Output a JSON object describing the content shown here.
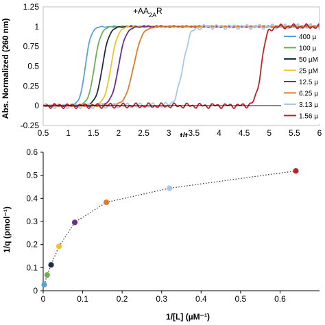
{
  "chart_data": [
    {
      "type": "line",
      "annotation": {
        "prefix": "+AA",
        "sub": "2A",
        "suffix": "R"
      },
      "xlabel": {
        "main": "t/t",
        "sub": "0"
      },
      "ylabel": "Abs. Normalized (260 nm)",
      "xlim": [
        0.5,
        6
      ],
      "ylim": [
        -0.25,
        1.25
      ],
      "xticks": [
        "0.5",
        "1",
        "1.5",
        "2",
        "2.5",
        "3",
        "3.5",
        "4",
        "4.5",
        "5",
        "5.5",
        "6"
      ],
      "yticks": [
        "-0.25",
        "0",
        "0.25",
        "0.5",
        "0.75",
        "1",
        "1.25"
      ],
      "legend_position": "right",
      "series": [
        {
          "name": "400 µ",
          "color": "#5aa0d8",
          "t_mid": 1.34,
          "k": 18
        },
        {
          "name": "100 µ",
          "color": "#6ab04c",
          "t_mid": 1.52,
          "k": 16
        },
        {
          "name": "50 µM",
          "color": "#1f2a44",
          "t_mid": 1.68,
          "k": 15
        },
        {
          "name": "25 µM",
          "color": "#f2c12e",
          "t_mid": 1.85,
          "k": 15
        },
        {
          "name": "12.5 µ",
          "color": "#6b2d8f",
          "t_mid": 2.0,
          "k": 14
        },
        {
          "name": "6.25 µ",
          "color": "#e07b2a",
          "t_mid": 2.3,
          "k": 12
        },
        {
          "name": "3.13 µ",
          "color": "#a6c8e6",
          "t_mid": 3.28,
          "k": 14
        },
        {
          "name": "1.56 µ",
          "color": "#c0202a",
          "t_mid": 4.84,
          "k": 18
        }
      ]
    },
    {
      "type": "scatter",
      "xlabel": "1/[L] (µM⁻¹)",
      "ylabel": "1/q (pmol⁻¹)",
      "xlim": [
        0,
        0.7
      ],
      "ylim": [
        0,
        0.6
      ],
      "xticks": [
        "0",
        "0.1",
        "0.2",
        "0.3",
        "0.4",
        "0.5",
        "0.6"
      ],
      "yticks": [
        "0",
        "0.1",
        "0.2",
        "0.3",
        "0.4",
        "0.5",
        "0.6"
      ],
      "points": [
        {
          "x": 0.0025,
          "y": 0.026,
          "color": "#5aa0d8"
        },
        {
          "x": 0.01,
          "y": 0.068,
          "color": "#6ab04c"
        },
        {
          "x": 0.02,
          "y": 0.112,
          "color": "#1f2a44"
        },
        {
          "x": 0.04,
          "y": 0.192,
          "color": "#f2c12e"
        },
        {
          "x": 0.08,
          "y": 0.296,
          "color": "#6b2d8f"
        },
        {
          "x": 0.16,
          "y": 0.383,
          "color": "#e07b2a"
        },
        {
          "x": 0.32,
          "y": 0.444,
          "color": "#a6c8e6"
        },
        {
          "x": 0.64,
          "y": 0.519,
          "color": "#c0202a"
        }
      ],
      "fit_line": "dotted"
    }
  ]
}
